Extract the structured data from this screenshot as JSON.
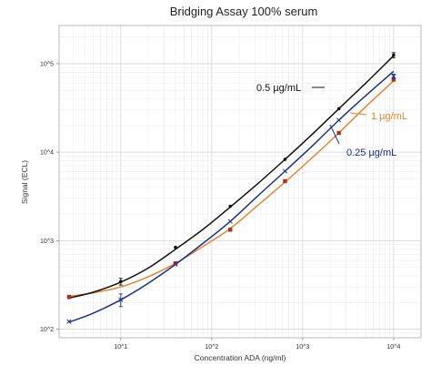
{
  "chart_data": {
    "type": "line",
    "title": "Bridging Assay 100% serum",
    "xlabel": "Concentration ADA (ng/ml)",
    "ylabel": "Signal (ECL)",
    "x_scale": "log",
    "y_scale": "log",
    "xlim": [
      2.1,
      20000
    ],
    "ylim": [
      80,
      270000
    ],
    "x_ticks": [
      {
        "value": 10,
        "label": "10^1"
      },
      {
        "value": 100,
        "label": "10^2"
      },
      {
        "value": 1000,
        "label": "10^3"
      },
      {
        "value": 10000,
        "label": "10^4"
      }
    ],
    "y_ticks": [
      {
        "value": 100,
        "label": "10^2"
      },
      {
        "value": 1000,
        "label": "10^3"
      },
      {
        "value": 10000,
        "label": "10^4"
      },
      {
        "value": 100000,
        "label": "10^5"
      }
    ],
    "grid": true,
    "series": [
      {
        "name": "0.5 µg/mL",
        "color": "#111111",
        "marker": "dot",
        "points": [
          {
            "x": 2.7,
            "y": 228
          },
          {
            "x": 10,
            "y": 345,
            "err": 30
          },
          {
            "x": 40,
            "y": 840
          },
          {
            "x": 160,
            "y": 2450
          },
          {
            "x": 640,
            "y": 8300
          },
          {
            "x": 2500,
            "y": 31000
          },
          {
            "x": 10000,
            "y": 125000,
            "err": 8000
          }
        ],
        "curve": [
          {
            "x": 2.7,
            "y": 225
          },
          {
            "x": 5,
            "y": 262
          },
          {
            "x": 10,
            "y": 340
          },
          {
            "x": 20,
            "y": 490
          },
          {
            "x": 40,
            "y": 800
          },
          {
            "x": 80,
            "y": 1340
          },
          {
            "x": 160,
            "y": 2400
          },
          {
            "x": 320,
            "y": 4400
          },
          {
            "x": 640,
            "y": 8300
          },
          {
            "x": 1280,
            "y": 16000
          },
          {
            "x": 2500,
            "y": 31000
          },
          {
            "x": 5000,
            "y": 61000
          },
          {
            "x": 10000,
            "y": 123000
          }
        ]
      },
      {
        "name": "1 µg/mL",
        "color": "#e8852a",
        "marker": "square",
        "marker_color": "#a83224",
        "points": [
          {
            "x": 2.7,
            "y": 232
          },
          {
            "x": 40,
            "y": 555
          },
          {
            "x": 160,
            "y": 1330
          },
          {
            "x": 640,
            "y": 4700
          },
          {
            "x": 2500,
            "y": 16500
          },
          {
            "x": 10000,
            "y": 66000
          }
        ],
        "curve": [
          {
            "x": 2.7,
            "y": 235
          },
          {
            "x": 5,
            "y": 258
          },
          {
            "x": 10,
            "y": 300
          },
          {
            "x": 20,
            "y": 390
          },
          {
            "x": 40,
            "y": 555
          },
          {
            "x": 80,
            "y": 860
          },
          {
            "x": 160,
            "y": 1370
          },
          {
            "x": 320,
            "y": 2500
          },
          {
            "x": 640,
            "y": 4600
          },
          {
            "x": 1280,
            "y": 8700
          },
          {
            "x": 2500,
            "y": 16500
          },
          {
            "x": 5000,
            "y": 33000
          },
          {
            "x": 10000,
            "y": 64000
          }
        ]
      },
      {
        "name": "0.25 µg/mL",
        "color": "#1b2f8f",
        "marker": "x",
        "points": [
          {
            "x": 2.7,
            "y": 122
          },
          {
            "x": 10,
            "y": 215,
            "err": 35
          },
          {
            "x": 40,
            "y": 540
          },
          {
            "x": 160,
            "y": 1650
          },
          {
            "x": 640,
            "y": 6100
          },
          {
            "x": 2500,
            "y": 23000
          },
          {
            "x": 10000,
            "y": 72000,
            "err": 4000
          }
        ],
        "curve": [
          {
            "x": 2.7,
            "y": 120
          },
          {
            "x": 5,
            "y": 152
          },
          {
            "x": 10,
            "y": 215
          },
          {
            "x": 20,
            "y": 330
          },
          {
            "x": 40,
            "y": 540
          },
          {
            "x": 80,
            "y": 930
          },
          {
            "x": 160,
            "y": 1650
          },
          {
            "x": 320,
            "y": 3200
          },
          {
            "x": 640,
            "y": 6100
          },
          {
            "x": 1280,
            "y": 11800
          },
          {
            "x": 2500,
            "y": 23000
          },
          {
            "x": 5000,
            "y": 44000
          },
          {
            "x": 10000,
            "y": 82000
          }
        ]
      }
    ],
    "annotations": [
      {
        "text": "0.5 µg/mL",
        "color": "#111111"
      },
      {
        "text": "1 µg/mL",
        "color": "#e8852a"
      },
      {
        "text": "0.25 µg/mL",
        "color": "#1b2f8f"
      }
    ]
  }
}
